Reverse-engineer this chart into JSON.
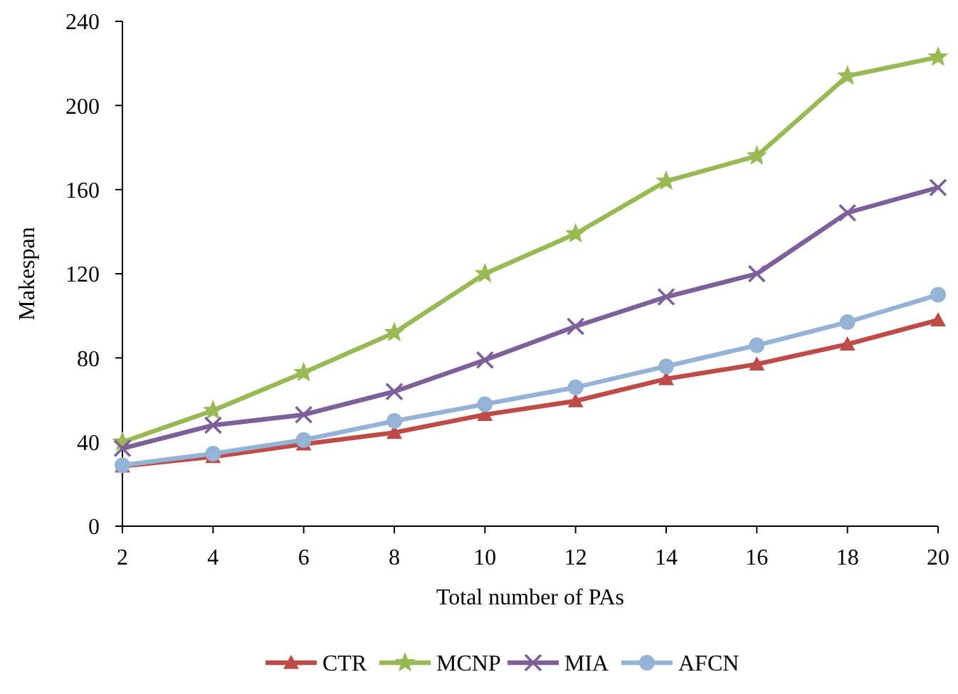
{
  "chart_data": {
    "type": "line",
    "xlabel": "Total number of PAs",
    "ylabel": "Makespan",
    "x": [
      2,
      4,
      6,
      8,
      10,
      12,
      14,
      16,
      18,
      20
    ],
    "xlim": [
      2,
      20
    ],
    "xticks": [
      2,
      4,
      6,
      8,
      10,
      12,
      14,
      16,
      18,
      20
    ],
    "ylim": [
      0,
      240
    ],
    "yticks": [
      0,
      40,
      80,
      120,
      160,
      200,
      240
    ],
    "grid": false,
    "legend": "bottom",
    "series": [
      {
        "name": "CTR",
        "color": "#be4b48",
        "marker": "triangle",
        "values": [
          28.5,
          33,
          39,
          44.5,
          53,
          59.5,
          70,
          77,
          86.5,
          98
        ]
      },
      {
        "name": "MCNP",
        "color": "#98b954",
        "marker": "star",
        "values": [
          40,
          55,
          73,
          92,
          120,
          139,
          164,
          176,
          214,
          223
        ]
      },
      {
        "name": "MIA",
        "color": "#7d5f9a",
        "marker": "cross",
        "values": [
          37,
          48,
          53,
          64,
          79,
          95,
          109,
          120,
          149,
          161
        ]
      },
      {
        "name": "AFCN",
        "color": "#95b3d7",
        "marker": "circle",
        "values": [
          29,
          34.5,
          41,
          50,
          58,
          66,
          76,
          86,
          97,
          110
        ]
      }
    ]
  }
}
